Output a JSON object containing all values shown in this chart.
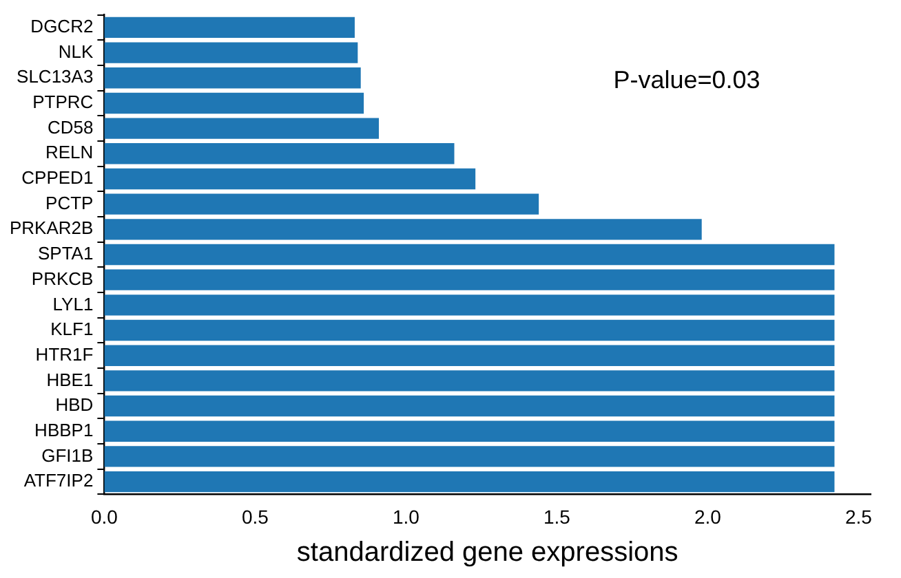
{
  "chart_data": {
    "type": "bar",
    "orientation": "horizontal",
    "categories": [
      "DGCR2",
      "NLK",
      "SLC13A3",
      "PTPRC",
      "CD58",
      "RELN",
      "CPPED1",
      "PCTP",
      "PRKAR2B",
      "SPTA1",
      "PRKCB",
      "LYL1",
      "KLF1",
      "HTR1F",
      "HBE1",
      "HBD",
      "HBBP1",
      "GFI1B",
      "ATF7IP2"
    ],
    "values": [
      0.83,
      0.84,
      0.85,
      0.86,
      0.91,
      1.16,
      1.23,
      1.44,
      1.98,
      2.42,
      2.42,
      2.42,
      2.42,
      2.42,
      2.42,
      2.42,
      2.42,
      2.42,
      2.42
    ],
    "color": "#1f77b4",
    "xlim": [
      0,
      2.54
    ],
    "xticks": [
      {
        "value": 0,
        "label": "0.0"
      },
      {
        "value": 0.5,
        "label": "0.5"
      },
      {
        "value": 1,
        "label": "1.0"
      },
      {
        "value": 1.5,
        "label": "1.5"
      },
      {
        "value": 2,
        "label": "2.0"
      },
      {
        "value": 2.5,
        "label": "2.5"
      }
    ],
    "xlabel": "standardized gene expressions",
    "annotations": [
      "P-value=0.03"
    ],
    "grid": false,
    "legend": false
  }
}
